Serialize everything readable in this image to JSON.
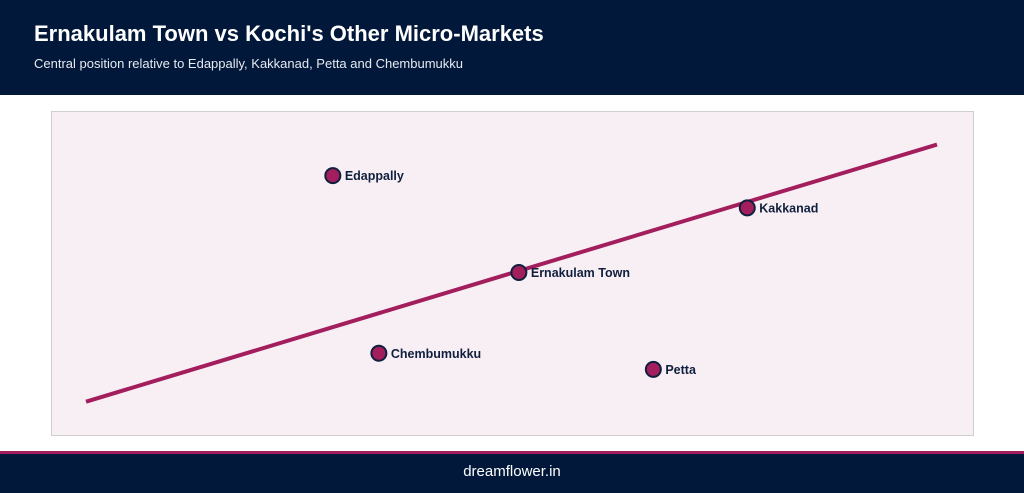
{
  "header": {
    "title": "Ernakulam Town vs Kochi's Other Micro-Markets",
    "subtitle": "Central position relative to Edappally, Kakkanad, Petta and Chembumukku"
  },
  "footer": {
    "site": "dreamflower.in"
  },
  "colors": {
    "header_bg": "#02183a",
    "plot_bg": "#f8eff5",
    "accent": "#a31e5c",
    "marker_outline": "#0f1f3d"
  },
  "chart_data": {
    "type": "scatter",
    "title": "Ernakulam Town vs Kochi's Other Micro-Markets",
    "subtitle": "Central position relative to Edappally, Kakkanad, Petta and Chembumukku",
    "xlim": [
      0,
      100
    ],
    "ylim": [
      0,
      100
    ],
    "grid": false,
    "points": [
      {
        "label": "Edappally",
        "x": 30.6,
        "y": 80.0
      },
      {
        "label": "Kakkanad",
        "x": 75.6,
        "y": 70.0
      },
      {
        "label": "Ernakulam Town",
        "x": 50.8,
        "y": 50.0
      },
      {
        "label": "Chembumukku",
        "x": 35.6,
        "y": 25.0
      },
      {
        "label": "Petta",
        "x": 65.4,
        "y": 20.0
      }
    ],
    "trend_line": {
      "start": {
        "x": 3.8,
        "y": 10.0
      },
      "end": {
        "x": 96.2,
        "y": 89.6
      }
    }
  }
}
